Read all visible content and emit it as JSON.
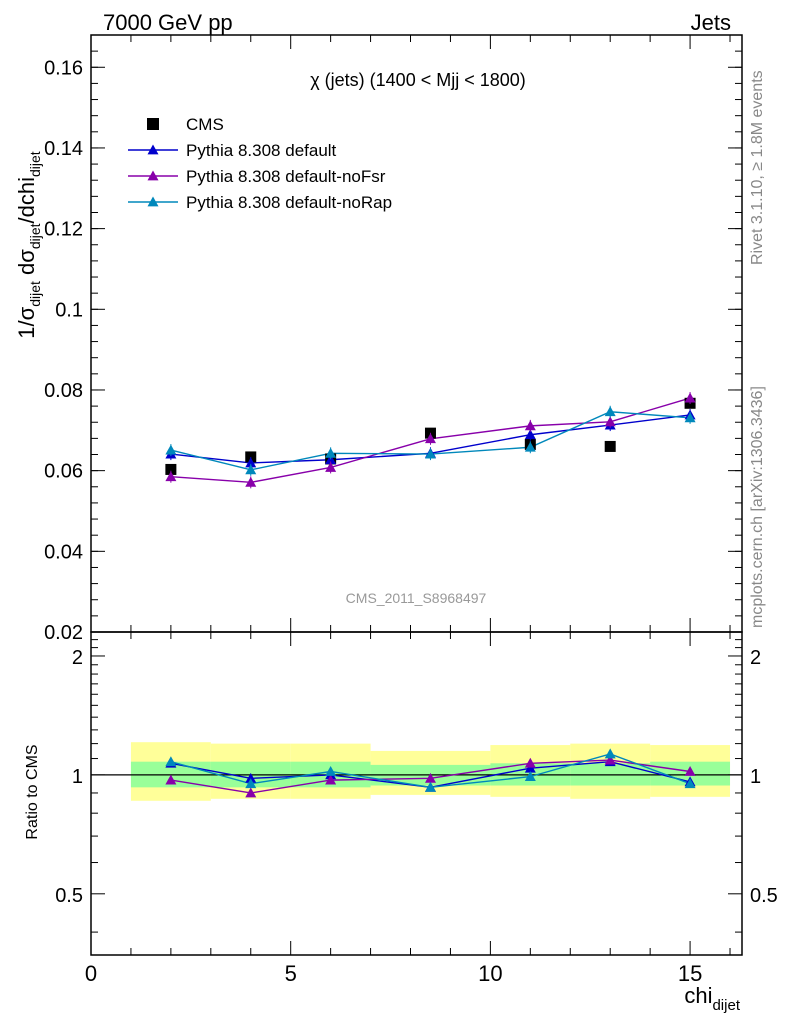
{
  "header": {
    "left": "7000 GeV pp",
    "right": "Jets"
  },
  "side_text": {
    "rivet": "Rivet 3.1.10, ≥ 1.8M events",
    "source": "mcplots.cern.ch [arXiv:1306.3436]"
  },
  "watermark": "CMS_2011_S8968497",
  "chart_data": [
    {
      "type": "scatter",
      "title": "χ (jets) (1400 < Mjj < 1800)",
      "xlabel": "chi_dijet",
      "ylabel": "1/σ_dijet dσ_dijet/dchi_dijet",
      "xlim": [
        0,
        16.3
      ],
      "ylim": [
        0.02,
        0.168
      ],
      "yticks": [
        0.02,
        0.04,
        0.06,
        0.08,
        0.1,
        0.12,
        0.14,
        0.16
      ],
      "ytick_labels": [
        "0.02",
        "0.04",
        "0.06",
        "0.08",
        "0.1",
        "0.12",
        "0.14",
        "0.16"
      ],
      "legend_position": "top-left",
      "series": [
        {
          "name": "CMS",
          "marker": "square",
          "color": "#000000",
          "x": [
            2,
            4,
            6,
            8.5,
            11,
            13,
            15
          ],
          "y": [
            0.0603,
            0.0634,
            0.0629,
            0.0693,
            0.0665,
            0.066,
            0.0767
          ]
        },
        {
          "name": "Pythia 8.308 default",
          "marker": "triangle",
          "color": "#0000cc",
          "x": [
            2,
            4,
            6,
            8.5,
            11,
            13,
            15
          ],
          "y": [
            0.0641,
            0.0619,
            0.0627,
            0.0643,
            0.0689,
            0.0713,
            0.0738
          ]
        },
        {
          "name": "Pythia 8.308 default-noFsr",
          "marker": "triangle",
          "color": "#8800aa",
          "x": [
            2,
            4,
            6,
            8.5,
            11,
            13,
            15
          ],
          "y": [
            0.0585,
            0.0571,
            0.0608,
            0.0679,
            0.0711,
            0.0721,
            0.078
          ]
        },
        {
          "name": "Pythia 8.308 default-noRap",
          "marker": "triangle",
          "color": "#0088bb",
          "x": [
            2,
            4,
            6,
            8.5,
            11,
            13,
            15
          ],
          "y": [
            0.0651,
            0.0602,
            0.0643,
            0.0641,
            0.0658,
            0.0746,
            0.0731
          ]
        }
      ]
    },
    {
      "type": "scatter",
      "xlabel": "chi_dijet",
      "ylabel": "Ratio to CMS",
      "xlim": [
        0,
        16.3
      ],
      "ylim": [
        0.35,
        2.3
      ],
      "log_y": true,
      "xticks": [
        0,
        5,
        10,
        15
      ],
      "xtick_labels": [
        "0",
        "5",
        "10",
        "15"
      ],
      "yticks": [
        0.5,
        1,
        2
      ],
      "ytick_labels": [
        "0.5",
        "1",
        "2"
      ],
      "bands": {
        "x_edges": [
          1,
          3,
          5,
          7,
          10,
          12,
          14,
          16
        ],
        "inner_lo": [
          0.93,
          0.93,
          0.93,
          0.94,
          0.94,
          0.94,
          0.94
        ],
        "inner_hi": [
          1.08,
          1.08,
          1.08,
          1.06,
          1.07,
          1.07,
          1.08
        ],
        "outer_lo": [
          0.86,
          0.87,
          0.87,
          0.89,
          0.88,
          0.87,
          0.88
        ],
        "outer_hi": [
          1.21,
          1.2,
          1.2,
          1.15,
          1.19,
          1.2,
          1.19
        ],
        "inner_color": "#99ff99",
        "outer_color": "#ffff99"
      },
      "series": [
        {
          "name": "Pythia 8.308 default",
          "color": "#0000cc",
          "x": [
            2,
            4,
            6,
            8.5,
            11,
            13,
            15
          ],
          "y": [
            1.07,
            0.98,
            1.0,
            0.93,
            1.04,
            1.08,
            0.96
          ]
        },
        {
          "name": "Pythia 8.308 default-noFsr",
          "color": "#8800aa",
          "x": [
            2,
            4,
            6,
            8.5,
            11,
            13,
            15
          ],
          "y": [
            0.97,
            0.9,
            0.97,
            0.98,
            1.07,
            1.09,
            1.02
          ]
        },
        {
          "name": "Pythia 8.308 default-noRap",
          "color": "#0088bb",
          "x": [
            2,
            4,
            6,
            8.5,
            11,
            13,
            15
          ],
          "y": [
            1.08,
            0.95,
            1.02,
            0.93,
            0.99,
            1.13,
            0.95
          ]
        }
      ]
    }
  ]
}
